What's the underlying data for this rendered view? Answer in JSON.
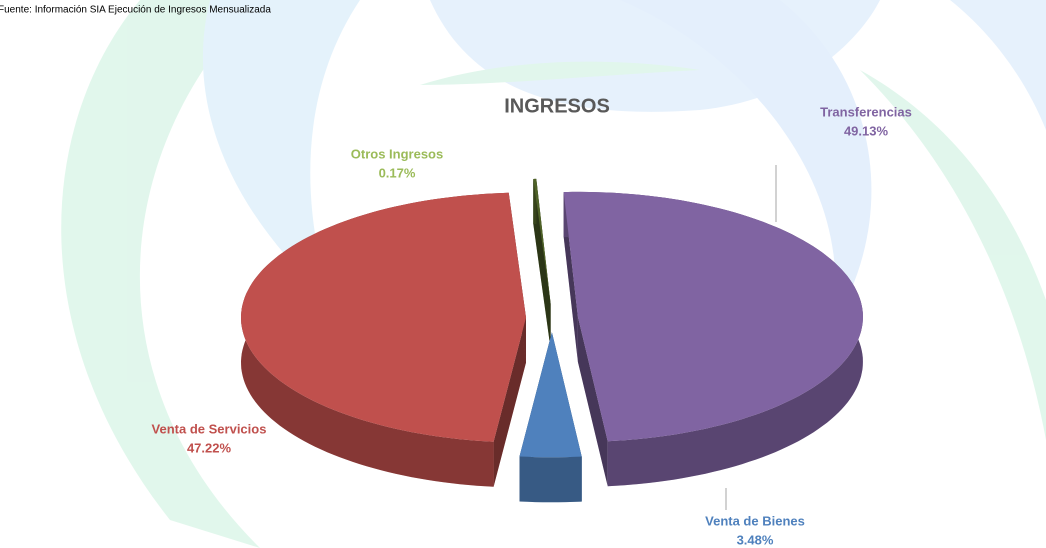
{
  "chart_data": {
    "type": "pie3d",
    "title": "INGRESOS",
    "source": "Fuente: Información SIA Ejecución de Ingresos Mensualizada",
    "categories": [
      "Transferencias",
      "Venta de Bienes",
      "Venta de Servicios",
      "Otros Ingresos"
    ],
    "values": [
      49.13,
      3.48,
      47.22,
      0.17
    ],
    "value_labels": [
      "49.13%",
      "3.48%",
      "47.22%",
      "0.17%"
    ],
    "colors": [
      "#8064a2",
      "#4f81bd",
      "#c0504d",
      "#4f6228"
    ],
    "label_colors": [
      "#8064a2",
      "#4f81bd",
      "#c0504d",
      "#9bbb59"
    ]
  }
}
